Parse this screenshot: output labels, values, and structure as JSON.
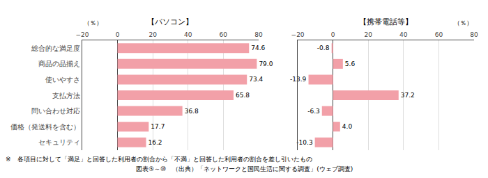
{
  "chart_data": [
    {
      "type": "bar",
      "orientation": "horizontal",
      "title": "【パソコン】",
      "xlabel": "（％）",
      "categories": [
        "総合的な満足度",
        "商品の品揃え",
        "使いやすさ",
        "支払方法",
        "問い合わせ対応",
        "価格（発送料を含む）",
        "セキュリティ"
      ],
      "values": [
        74.6,
        79.0,
        73.4,
        65.8,
        36.8,
        17.7,
        16.2
      ],
      "value_labels": [
        "74.6",
        "79.0",
        "73.4",
        "65.8",
        "36.8",
        "17.7",
        "16.2"
      ],
      "color": "#f2a0a8",
      "xlim": [
        -20,
        80
      ],
      "xticks": [
        {
          "value": -20,
          "label": "−20"
        },
        0,
        20,
        40,
        60,
        80
      ],
      "grid": true,
      "data_labels": true
    },
    {
      "type": "bar",
      "orientation": "horizontal",
      "title": "【携帯電話等】",
      "xlabel": "（％）",
      "categories": [
        "総合的な満足度",
        "商品の品揃え",
        "使いやすさ",
        "支払方法",
        "問い合わせ対応",
        "価格（発送料を含む）",
        "セキュリティ"
      ],
      "values": [
        -0.8,
        5.6,
        -13.9,
        37.2,
        -6.3,
        4.0,
        -10.3
      ],
      "value_labels": [
        "-0.8",
        "5.6",
        "-13.9",
        "37.2",
        "-6.3",
        "4.0",
        "-10.3"
      ],
      "color": "#f2a0a8",
      "xlim": [
        -20,
        80
      ],
      "xticks": [
        {
          "value": -20,
          "label": "−20"
        },
        0,
        20,
        40,
        60,
        80
      ],
      "grid": true,
      "data_labels": true,
      "tick_labels": "x"
    }
  ],
  "annotations": [
    "※　各項目に対して「満足」と回答した利用者の割合から「不満」と回答した利用者の割合を差し引いたもの",
    "図表⑤～⑩　（出典）「ネットワークと国民生活に関する調査」(ウェブ調査)"
  ]
}
